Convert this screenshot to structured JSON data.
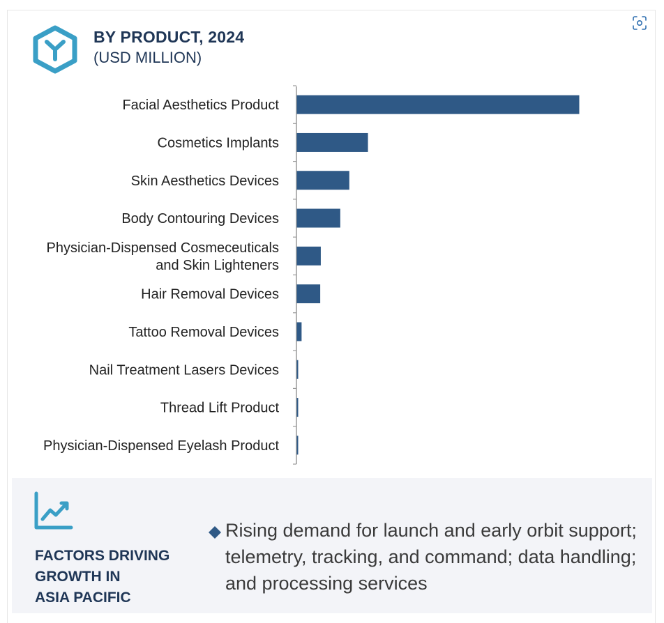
{
  "header": {
    "title": "BY PRODUCT, 2024",
    "subtitle": "(USD MILLION)",
    "logo_icon": "hexagon-y-logo-icon",
    "scan_icon": "scan-icon"
  },
  "colors": {
    "bar": "#2f5986",
    "title": "#1f3656",
    "accent": "#3a9fc6",
    "panel_bg": "#f3f4f8",
    "diamond": "#2f5986"
  },
  "chart_data": {
    "type": "bar",
    "orientation": "horizontal",
    "title": "BY PRODUCT, 2024",
    "subtitle": "(USD MILLION)",
    "categories": [
      "Facial Aesthetics Product",
      "Cosmetics Implants",
      "Skin Aesthetics Devices",
      "Body Contouring Devices",
      "Physician-Dispensed Cosmeceuticals and Skin Lighteners",
      "Hair Removal Devices",
      "Tattoo Removal Devices",
      "Nail Treatment Lasers Devices",
      "Thread Lift Product",
      "Physician-Dispensed Eyelash Product"
    ],
    "category_lines": [
      [
        "Facial Aesthetics Product"
      ],
      [
        "Cosmetics Implants"
      ],
      [
        "Skin Aesthetics Devices"
      ],
      [
        "Body Contouring Devices"
      ],
      [
        "Physician-Dispensed Cosmeceuticals",
        "and Skin Lighteners"
      ],
      [
        "Hair Removal Devices"
      ],
      [
        "Tattoo Removal Devices"
      ],
      [
        "Nail Treatment Lasers Devices"
      ],
      [
        "Thread Lift Product"
      ],
      [
        "Physician-Dispensed Eyelash Product"
      ]
    ],
    "values": [
      100,
      25.2,
      18.6,
      15.4,
      8.5,
      8.3,
      1.7,
      0.4,
      0.4,
      0.3
    ],
    "xlim": [
      0,
      100
    ],
    "grid": false,
    "legend": "none"
  },
  "factors": {
    "heading_lines": [
      "FACTORS DRIVING",
      "GROWTH IN",
      "ASIA PACIFIC"
    ],
    "icon": "trend-chart-icon",
    "bullet_icon": "diamond-bullet-icon",
    "bullet_text": "Rising demand for launch and early orbit support; telemetry, tracking, and command; data handling; and processing services"
  }
}
